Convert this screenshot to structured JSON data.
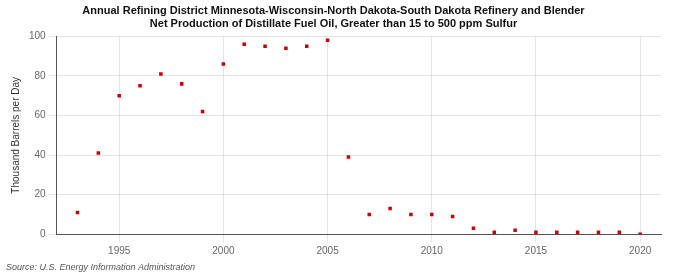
{
  "chart_data": {
    "type": "scatter",
    "title": "Annual Refining District Minnesota-Wisconsin-North Dakota-South Dakota Refinery and Blender\nNet Production of Distillate Fuel Oil, Greater than 15 to 500 ppm Sulfur",
    "ylabel": "Thousand Barrels per Day",
    "annotation": "Source: U.S. Energy Information Administration",
    "x": [
      1993,
      1994,
      1995,
      1996,
      1997,
      1998,
      1999,
      2000,
      2001,
      2002,
      2003,
      2004,
      2005,
      2006,
      2007,
      2008,
      2009,
      2010,
      2011,
      2012,
      2013,
      2014,
      2015,
      2016,
      2017,
      2018,
      2019,
      2020
    ],
    "values": [
      11,
      41,
      70,
      75,
      81,
      76,
      62,
      86,
      96,
      95,
      94,
      95,
      98,
      39,
      10,
      13,
      10,
      10,
      9,
      3,
      1,
      2,
      1,
      1,
      1,
      1,
      1,
      0
    ],
    "color": "#cc0000",
    "marker": "square",
    "xlim": [
      1992,
      2021
    ],
    "ylim": [
      0,
      100
    ],
    "xticks": [
      1995,
      2000,
      2005,
      2010,
      2015,
      2020
    ],
    "yticks": [
      0,
      20,
      40,
      60,
      80,
      100
    ],
    "grid": true
  }
}
